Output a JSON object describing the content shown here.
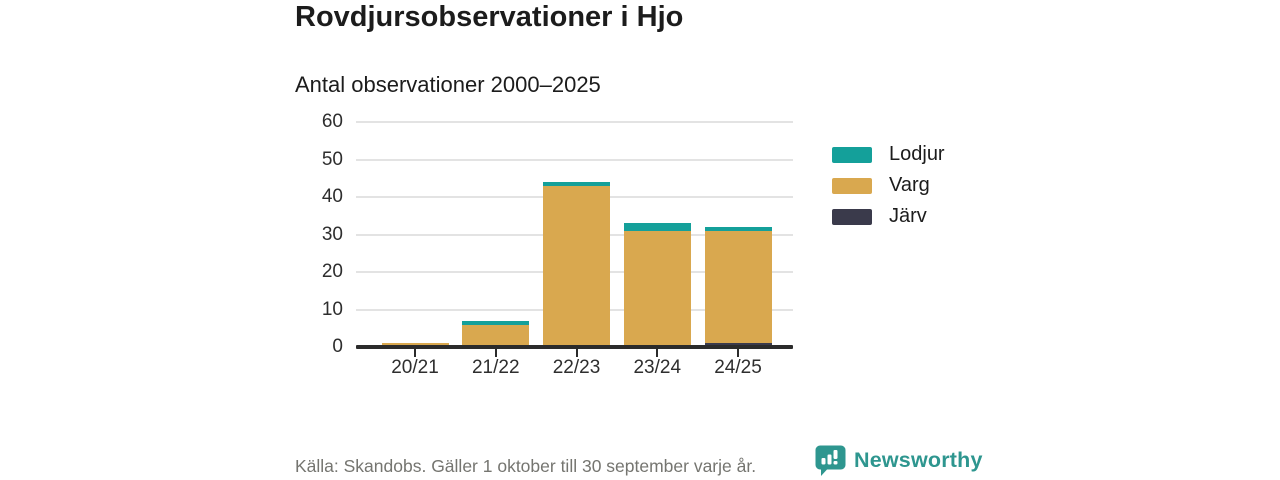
{
  "chart_data": {
    "type": "bar",
    "stacked": true,
    "title": "Rovdjursobservationer i Hjo",
    "subtitle": "Antal observationer 2000–2025",
    "categories": [
      "20/21",
      "21/22",
      "22/23",
      "23/24",
      "24/25"
    ],
    "series": [
      {
        "name": "Lodjur",
        "color": "#14a09a",
        "values": [
          0,
          1,
          1,
          2,
          1
        ]
      },
      {
        "name": "Varg",
        "color": "#d9a84f",
        "values": [
          1,
          6,
          43,
          31,
          30
        ]
      },
      {
        "name": "Järv",
        "color": "#3a3a4b",
        "values": [
          0,
          0,
          0,
          0,
          1
        ]
      }
    ],
    "stack_order_bottom_to_top": [
      "Järv",
      "Varg",
      "Lodjur"
    ],
    "totals": [
      1,
      7,
      44,
      33,
      32
    ],
    "xlabel": "",
    "ylabel": "",
    "ylim": [
      0,
      60
    ],
    "yticks": [
      0,
      10,
      20,
      30,
      40,
      50,
      60
    ],
    "grid": "horizontal",
    "legend_position": "right"
  },
  "colors": {
    "grid": "#e3e3e3",
    "axis": "#2b2b2b",
    "text": "#1c1c1c",
    "muted_text": "#757570",
    "brand": "#2e968f"
  },
  "footer": {
    "source": "Källa: Skandobs. Gäller 1 oktober till 30 september varje år.",
    "brand": "Newsworthy"
  }
}
